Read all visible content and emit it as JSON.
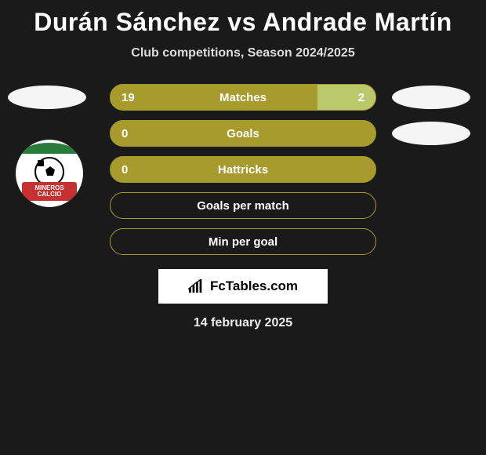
{
  "title": "Durán Sánchez vs Andrade Martín",
  "subtitle": "Club competitions, Season 2024/2025",
  "colors": {
    "primary_bar": "#a89b2e",
    "secondary_fill": "#b9c96b",
    "background": "#1a1a1a",
    "pill": "#f5f5f5",
    "text": "#ffffff"
  },
  "rows": [
    {
      "label": "Matches",
      "left_val": "19",
      "right_val": "2",
      "left_pct": 78,
      "right_pct": 22,
      "show_left_pill": true,
      "show_right_pill": true,
      "show_right_val": true
    },
    {
      "label": "Goals",
      "left_val": "0",
      "right_val": "",
      "left_pct": 100,
      "right_pct": 0,
      "show_left_pill": false,
      "show_right_pill": true,
      "show_right_val": false
    },
    {
      "label": "Hattricks",
      "left_val": "0",
      "right_val": "",
      "left_pct": 100,
      "right_pct": 0,
      "show_left_pill": false,
      "show_right_pill": false,
      "show_right_val": false
    },
    {
      "label": "Goals per match",
      "left_val": "",
      "right_val": "",
      "left_pct": 0,
      "right_pct": 0,
      "show_left_pill": false,
      "show_right_pill": false,
      "show_right_val": false,
      "empty": true
    },
    {
      "label": "Min per goal",
      "left_val": "",
      "right_val": "",
      "left_pct": 0,
      "right_pct": 0,
      "show_left_pill": false,
      "show_right_pill": false,
      "show_right_val": false,
      "empty": true
    }
  ],
  "badge": {
    "top_text": "MINEROS",
    "bottom_text": "CALCIO",
    "ribbon_color": "#c53030",
    "top_color": "#2a7a3a"
  },
  "footer": {
    "brand": "FcTables.com"
  },
  "date": "14 february 2025"
}
